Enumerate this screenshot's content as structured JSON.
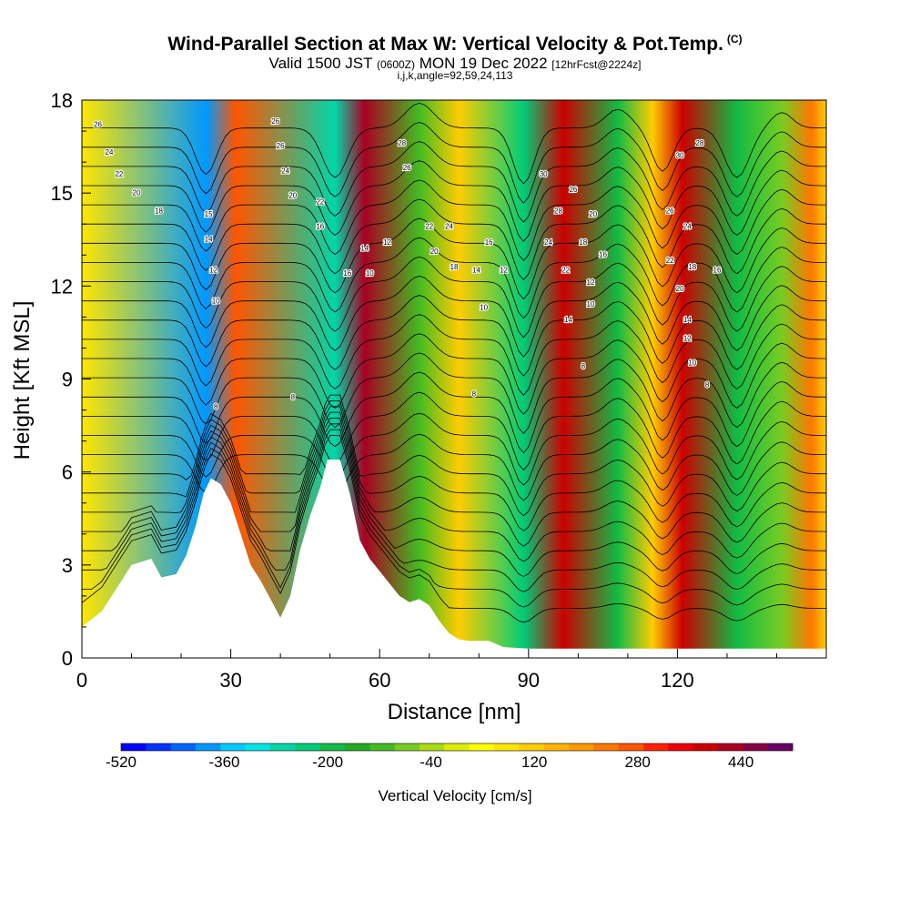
{
  "header": {
    "title": "Wind-Parallel Section at Max W: Vertical Velocity & Pot.Temp.",
    "title_mark": "(C)",
    "valid_prefix": "Valid 1500 JST",
    "valid_utc": "(0600Z)",
    "valid_date": "MON 19 Dec 2022",
    "forecast": "[12hrFcst@2224z]",
    "indices": "i,j,k,angle=92,59,24,113"
  },
  "chart_data": {
    "type": "heatmap",
    "xlabel": "Distance [nm]",
    "ylabel": "Height [Kft MSL]",
    "xlim": [
      0,
      150
    ],
    "ylim": [
      0,
      18
    ],
    "x_ticks": [
      0,
      30,
      60,
      90,
      120
    ],
    "y_ticks": [
      0,
      3,
      6,
      9,
      12,
      15,
      18
    ],
    "colorbar": {
      "label": "Vertical Velocity [cm/s]",
      "range": [
        -520,
        520
      ],
      "step": 40,
      "tick_values": [
        -520,
        -360,
        -200,
        -40,
        120,
        280,
        440
      ],
      "tick_labels": [
        "-520",
        "-360",
        "-200",
        "-40",
        "120",
        "280",
        "440"
      ],
      "colors": [
        "#0000ff",
        "#0033ff",
        "#0066ff",
        "#0099ff",
        "#00ccff",
        "#00e5e5",
        "#00d6a8",
        "#00cc77",
        "#11bb44",
        "#22aa22",
        "#44bb22",
        "#77cc22",
        "#aadd11",
        "#ddee00",
        "#ffff00",
        "#ffe600",
        "#ffcc00",
        "#ffb300",
        "#ff9900",
        "#ff7700",
        "#ff5500",
        "#ff2200",
        "#ee0000",
        "#cc0000",
        "#aa0022",
        "#880044",
        "#660066"
      ]
    },
    "vertical_velocity_features": [
      {
        "x": 25,
        "w": -380
      },
      {
        "x": 31,
        "w": 300
      },
      {
        "x": 51,
        "w": -280
      },
      {
        "x": 57,
        "w": 460
      },
      {
        "x": 68,
        "w": -100
      },
      {
        "x": 76,
        "w": 120
      },
      {
        "x": 89,
        "w": -220
      },
      {
        "x": 97,
        "w": 430
      },
      {
        "x": 108,
        "w": -170
      },
      {
        "x": 115,
        "w": 130
      },
      {
        "x": 121,
        "w": 430
      },
      {
        "x": 132,
        "w": -190
      },
      {
        "x": 141,
        "w": -60
      },
      {
        "x": 147,
        "w": 240
      }
    ],
    "theta_contour_labels": [
      {
        "text": "26",
        "x": 3.2,
        "y": 17.2
      },
      {
        "text": "24",
        "x": 5.5,
        "y": 16.3
      },
      {
        "text": "22",
        "x": 7.5,
        "y": 15.6
      },
      {
        "text": "20",
        "x": 11,
        "y": 15.0
      },
      {
        "text": "18",
        "x": 15.5,
        "y": 14.4
      },
      {
        "text": "15",
        "x": 25.5,
        "y": 14.3
      },
      {
        "text": "14",
        "x": 25.5,
        "y": 13.5
      },
      {
        "text": "12",
        "x": 26.5,
        "y": 12.5
      },
      {
        "text": "10",
        "x": 27,
        "y": 11.5
      },
      {
        "text": "8",
        "x": 27,
        "y": 8.1
      },
      {
        "text": "26",
        "x": 39,
        "y": 17.3
      },
      {
        "text": "26",
        "x": 40,
        "y": 16.5
      },
      {
        "text": "24",
        "x": 41,
        "y": 15.7
      },
      {
        "text": "20",
        "x": 42.5,
        "y": 14.9
      },
      {
        "text": "22",
        "x": 48,
        "y": 14.7
      },
      {
        "text": "16",
        "x": 48,
        "y": 13.9
      },
      {
        "text": "8",
        "x": 42.5,
        "y": 8.4
      },
      {
        "text": "16",
        "x": 53.5,
        "y": 12.4
      },
      {
        "text": "14",
        "x": 57,
        "y": 13.2
      },
      {
        "text": "10",
        "x": 58,
        "y": 12.4
      },
      {
        "text": "12",
        "x": 61.5,
        "y": 13.4
      },
      {
        "text": "28",
        "x": 64.5,
        "y": 16.6
      },
      {
        "text": "26",
        "x": 65.5,
        "y": 15.8
      },
      {
        "text": "22",
        "x": 70,
        "y": 13.9
      },
      {
        "text": "24",
        "x": 74,
        "y": 13.9
      },
      {
        "text": "20",
        "x": 71,
        "y": 13.1
      },
      {
        "text": "18",
        "x": 75,
        "y": 12.6
      },
      {
        "text": "14",
        "x": 79.5,
        "y": 12.5
      },
      {
        "text": "16",
        "x": 82,
        "y": 13.4
      },
      {
        "text": "12",
        "x": 85,
        "y": 12.5
      },
      {
        "text": "10",
        "x": 81,
        "y": 11.3
      },
      {
        "text": "8",
        "x": 79,
        "y": 8.5
      },
      {
        "text": "30",
        "x": 93,
        "y": 15.6
      },
      {
        "text": "28",
        "x": 96,
        "y": 14.4
      },
      {
        "text": "26",
        "x": 99,
        "y": 15.1
      },
      {
        "text": "20",
        "x": 103,
        "y": 14.3
      },
      {
        "text": "24",
        "x": 94,
        "y": 13.4
      },
      {
        "text": "18",
        "x": 101,
        "y": 13.4
      },
      {
        "text": "16",
        "x": 105,
        "y": 13.0
      },
      {
        "text": "22",
        "x": 97.5,
        "y": 12.5
      },
      {
        "text": "12",
        "x": 102.5,
        "y": 12.1
      },
      {
        "text": "10",
        "x": 102.5,
        "y": 11.4
      },
      {
        "text": "14",
        "x": 98,
        "y": 10.9
      },
      {
        "text": "8",
        "x": 101,
        "y": 9.4
      },
      {
        "text": "30",
        "x": 120.5,
        "y": 16.2
      },
      {
        "text": "28",
        "x": 124.5,
        "y": 16.6
      },
      {
        "text": "26",
        "x": 118.5,
        "y": 14.4
      },
      {
        "text": "24",
        "x": 122,
        "y": 13.9
      },
      {
        "text": "22",
        "x": 118.5,
        "y": 12.8
      },
      {
        "text": "18",
        "x": 123,
        "y": 12.6
      },
      {
        "text": "16",
        "x": 128,
        "y": 12.5
      },
      {
        "text": "20",
        "x": 120.5,
        "y": 11.9
      },
      {
        "text": "14",
        "x": 122,
        "y": 10.9
      },
      {
        "text": "12",
        "x": 122,
        "y": 10.3
      },
      {
        "text": "10",
        "x": 123,
        "y": 9.5
      },
      {
        "text": "8",
        "x": 126,
        "y": 8.8
      }
    ]
  }
}
